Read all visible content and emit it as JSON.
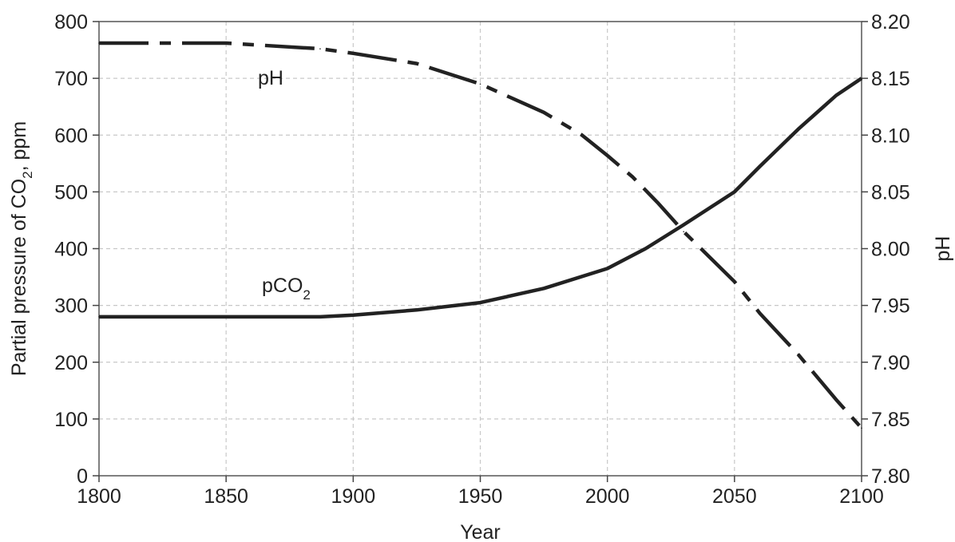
{
  "chart_data": {
    "type": "line",
    "title": "",
    "xlabel": "Year",
    "ylabel_left": {
      "prefix": "Partial pressure of CO",
      "sub": "2",
      "suffix": ", ppm"
    },
    "ylabel_right": "pH",
    "xlim": [
      1800,
      2100
    ],
    "ylim_left": [
      0,
      800
    ],
    "ylim_right": [
      7.8,
      8.2
    ],
    "x_ticks": [
      "1800",
      "1850",
      "1900",
      "1950",
      "2000",
      "2050",
      "2100"
    ],
    "y_ticks_left": [
      "0",
      "100",
      "200",
      "300",
      "400",
      "500",
      "600",
      "700",
      "800"
    ],
    "y_ticks_right": [
      "7.80",
      "7.85",
      "7.90",
      "7.95",
      "8.00",
      "8.05",
      "8.10",
      "8.15",
      "8.20"
    ],
    "grid": true,
    "series": [
      {
        "name": {
          "prefix": "pCO",
          "sub": "2"
        },
        "axis": "left",
        "style": "solid",
        "color": "#222222",
        "x": [
          1800,
          1850,
          1887,
          1900,
          1925,
          1950,
          1975,
          2000,
          2015,
          2030,
          2050,
          2060,
          2075,
          2090,
          2100
        ],
        "y": [
          280,
          280,
          280,
          283,
          292,
          305,
          330,
          365,
          400,
          442,
          500,
          545,
          610,
          670,
          700
        ]
      },
      {
        "name": "pH",
        "axis": "right",
        "style": "dash-dot",
        "color": "#222222",
        "x": [
          1800,
          1850,
          1887,
          1900,
          1925,
          1950,
          1975,
          1990,
          2000,
          2010,
          2020,
          2030,
          2040,
          2050,
          2060,
          2075,
          2090,
          2100
        ],
        "y": [
          8.181,
          8.181,
          8.176,
          8.172,
          8.163,
          8.145,
          8.12,
          8.1,
          8.082,
          8.063,
          8.04,
          8.015,
          7.993,
          7.971,
          7.943,
          7.907,
          7.867,
          7.842
        ]
      }
    ]
  }
}
